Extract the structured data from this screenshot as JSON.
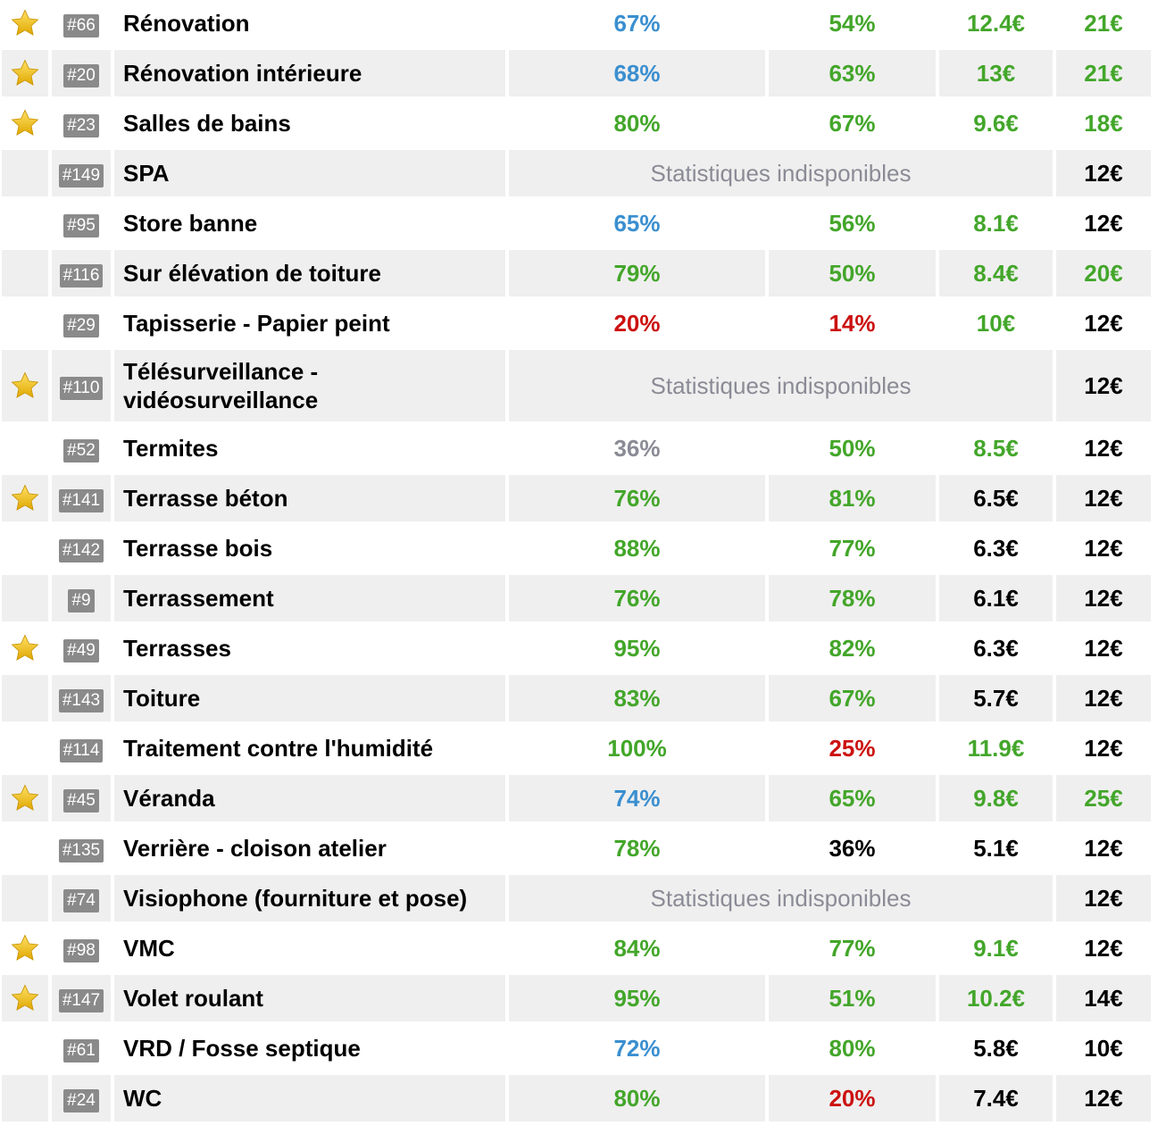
{
  "colors": {
    "green": "#43a62a",
    "blue": "#3a8fd0",
    "red": "#cc1111",
    "gray": "#8b8b96",
    "black": "#000000",
    "badge": "#8a8a8a",
    "row_alt": "#efefef",
    "star": "#f2c21b"
  },
  "unavailable_label": "Statistiques indisponibles",
  "rows": [
    {
      "star": true,
      "rank": "#66",
      "name": "Rénovation",
      "c1": {
        "v": "67%",
        "color": "blue"
      },
      "c2": {
        "v": "54%",
        "color": "green"
      },
      "c3": {
        "v": "12.4€",
        "color": "green"
      },
      "price": {
        "v": "21€",
        "color": "green"
      }
    },
    {
      "star": true,
      "rank": "#20",
      "name": "Rénovation intérieure",
      "c1": {
        "v": "68%",
        "color": "blue"
      },
      "c2": {
        "v": "63%",
        "color": "green"
      },
      "c3": {
        "v": "13€",
        "color": "green"
      },
      "price": {
        "v": "21€",
        "color": "green"
      }
    },
    {
      "star": true,
      "rank": "#23",
      "name": "Salles de bains",
      "c1": {
        "v": "80%",
        "color": "green"
      },
      "c2": {
        "v": "67%",
        "color": "green"
      },
      "c3": {
        "v": "9.6€",
        "color": "green"
      },
      "price": {
        "v": "18€",
        "color": "green"
      }
    },
    {
      "star": false,
      "rank": "#149",
      "name": "SPA",
      "unavailable": true,
      "price": {
        "v": "12€",
        "color": "black"
      }
    },
    {
      "star": false,
      "rank": "#95",
      "name": "Store banne",
      "c1": {
        "v": "65%",
        "color": "blue"
      },
      "c2": {
        "v": "56%",
        "color": "green"
      },
      "c3": {
        "v": "8.1€",
        "color": "green"
      },
      "price": {
        "v": "12€",
        "color": "black"
      }
    },
    {
      "star": false,
      "rank": "#116",
      "name": "Sur élévation de toiture",
      "c1": {
        "v": "79%",
        "color": "green"
      },
      "c2": {
        "v": "50%",
        "color": "green"
      },
      "c3": {
        "v": "8.4€",
        "color": "green"
      },
      "price": {
        "v": "20€",
        "color": "green"
      }
    },
    {
      "star": false,
      "rank": "#29",
      "name": "Tapisserie - Papier peint",
      "c1": {
        "v": "20%",
        "color": "red"
      },
      "c2": {
        "v": "14%",
        "color": "red"
      },
      "c3": {
        "v": "10€",
        "color": "green"
      },
      "price": {
        "v": "12€",
        "color": "black"
      }
    },
    {
      "star": true,
      "rank": "#110",
      "name": "Télésurveillance - vidéosurveillance",
      "tall": true,
      "unavailable": true,
      "price": {
        "v": "12€",
        "color": "black"
      }
    },
    {
      "star": false,
      "rank": "#52",
      "name": "Termites",
      "c1": {
        "v": "36%",
        "color": "gray"
      },
      "c2": {
        "v": "50%",
        "color": "green"
      },
      "c3": {
        "v": "8.5€",
        "color": "green"
      },
      "price": {
        "v": "12€",
        "color": "black"
      }
    },
    {
      "star": true,
      "rank": "#141",
      "name": "Terrasse béton",
      "c1": {
        "v": "76%",
        "color": "green"
      },
      "c2": {
        "v": "81%",
        "color": "green"
      },
      "c3": {
        "v": "6.5€",
        "color": "black"
      },
      "price": {
        "v": "12€",
        "color": "black"
      }
    },
    {
      "star": false,
      "rank": "#142",
      "name": "Terrasse bois",
      "c1": {
        "v": "88%",
        "color": "green"
      },
      "c2": {
        "v": "77%",
        "color": "green"
      },
      "c3": {
        "v": "6.3€",
        "color": "black"
      },
      "price": {
        "v": "12€",
        "color": "black"
      }
    },
    {
      "star": false,
      "rank": "#9",
      "name": "Terrassement",
      "c1": {
        "v": "76%",
        "color": "green"
      },
      "c2": {
        "v": "78%",
        "color": "green"
      },
      "c3": {
        "v": "6.1€",
        "color": "black"
      },
      "price": {
        "v": "12€",
        "color": "black"
      }
    },
    {
      "star": true,
      "rank": "#49",
      "name": "Terrasses",
      "c1": {
        "v": "95%",
        "color": "green"
      },
      "c2": {
        "v": "82%",
        "color": "green"
      },
      "c3": {
        "v": "6.3€",
        "color": "black"
      },
      "price": {
        "v": "12€",
        "color": "black"
      }
    },
    {
      "star": false,
      "rank": "#143",
      "name": "Toiture",
      "c1": {
        "v": "83%",
        "color": "green"
      },
      "c2": {
        "v": "67%",
        "color": "green"
      },
      "c3": {
        "v": "5.7€",
        "color": "black"
      },
      "price": {
        "v": "12€",
        "color": "black"
      }
    },
    {
      "star": false,
      "rank": "#114",
      "name": "Traitement contre l'humidité",
      "c1": {
        "v": "100%",
        "color": "green"
      },
      "c2": {
        "v": "25%",
        "color": "red"
      },
      "c3": {
        "v": "11.9€",
        "color": "green"
      },
      "price": {
        "v": "12€",
        "color": "black"
      }
    },
    {
      "star": true,
      "rank": "#45",
      "name": "Véranda",
      "c1": {
        "v": "74%",
        "color": "blue"
      },
      "c2": {
        "v": "65%",
        "color": "green"
      },
      "c3": {
        "v": "9.8€",
        "color": "green"
      },
      "price": {
        "v": "25€",
        "color": "green"
      }
    },
    {
      "star": false,
      "rank": "#135",
      "name": "Verrière - cloison atelier",
      "c1": {
        "v": "78%",
        "color": "green"
      },
      "c2": {
        "v": "36%",
        "color": "black"
      },
      "c3": {
        "v": "5.1€",
        "color": "black"
      },
      "price": {
        "v": "12€",
        "color": "black"
      }
    },
    {
      "star": false,
      "rank": "#74",
      "name": "Visiophone (fourniture et pose)",
      "unavailable": true,
      "price": {
        "v": "12€",
        "color": "black"
      }
    },
    {
      "star": true,
      "rank": "#98",
      "name": "VMC",
      "c1": {
        "v": "84%",
        "color": "green"
      },
      "c2": {
        "v": "77%",
        "color": "green"
      },
      "c3": {
        "v": "9.1€",
        "color": "green"
      },
      "price": {
        "v": "12€",
        "color": "black"
      }
    },
    {
      "star": true,
      "rank": "#147",
      "name": "Volet roulant",
      "c1": {
        "v": "95%",
        "color": "green"
      },
      "c2": {
        "v": "51%",
        "color": "green"
      },
      "c3": {
        "v": "10.2€",
        "color": "green"
      },
      "price": {
        "v": "14€",
        "color": "black"
      }
    },
    {
      "star": false,
      "rank": "#61",
      "name": "VRD / Fosse septique",
      "c1": {
        "v": "72%",
        "color": "blue"
      },
      "c2": {
        "v": "80%",
        "color": "green"
      },
      "c3": {
        "v": "5.8€",
        "color": "black"
      },
      "price": {
        "v": "10€",
        "color": "black"
      }
    },
    {
      "star": false,
      "rank": "#24",
      "name": "WC",
      "c1": {
        "v": "80%",
        "color": "green"
      },
      "c2": {
        "v": "20%",
        "color": "red"
      },
      "c3": {
        "v": "7.4€",
        "color": "black"
      },
      "price": {
        "v": "12€",
        "color": "black"
      }
    }
  ]
}
